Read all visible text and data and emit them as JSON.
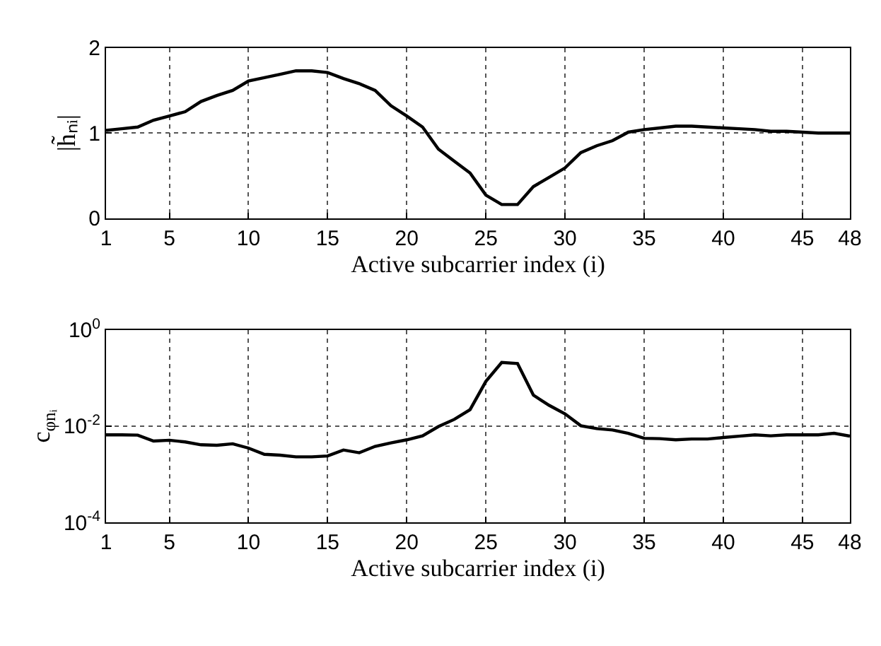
{
  "chart_data": [
    {
      "type": "line",
      "xlabel": "Active subcarrier index (i)",
      "ylabel": "|h̃ₙᵢ|",
      "x": [
        1,
        2,
        3,
        4,
        5,
        6,
        7,
        8,
        9,
        10,
        11,
        12,
        13,
        14,
        15,
        16,
        17,
        18,
        19,
        20,
        21,
        22,
        23,
        24,
        25,
        26,
        27,
        28,
        29,
        30,
        31,
        32,
        33,
        34,
        35,
        36,
        37,
        38,
        39,
        40,
        41,
        42,
        43,
        44,
        45,
        46,
        47,
        48
      ],
      "series": [
        {
          "color": "#000000",
          "values": [
            1.03,
            1.05,
            1.07,
            1.15,
            1.2,
            1.25,
            1.37,
            1.44,
            1.5,
            1.61,
            1.65,
            1.69,
            1.73,
            1.73,
            1.71,
            1.64,
            1.58,
            1.5,
            1.32,
            1.2,
            1.07,
            0.81,
            0.67,
            0.53,
            0.27,
            0.16,
            0.16,
            0.37,
            0.48,
            0.59,
            0.77,
            0.85,
            0.91,
            1.01,
            1.04,
            1.06,
            1.08,
            1.08,
            1.07,
            1.06,
            1.05,
            1.04,
            1.02,
            1.02,
            1.01,
            1.0,
            1.0,
            1.0
          ]
        }
      ],
      "xlim": [
        1,
        48
      ],
      "xticks": [
        1,
        5,
        10,
        15,
        20,
        25,
        30,
        35,
        40,
        45,
        48
      ],
      "ylim": [
        0,
        2
      ],
      "yticks": [
        0,
        1,
        2
      ],
      "grid": true,
      "line_style": "solid"
    },
    {
      "type": "line",
      "xlabel": "Active subcarrier index (i)",
      "ylabel": "c$_{φnᵢ}$",
      "log": "y",
      "x": [
        1,
        2,
        3,
        4,
        5,
        6,
        7,
        8,
        9,
        10,
        11,
        12,
        13,
        14,
        15,
        16,
        17,
        18,
        19,
        20,
        21,
        22,
        23,
        24,
        25,
        26,
        27,
        28,
        29,
        30,
        31,
        32,
        33,
        34,
        35,
        36,
        37,
        38,
        39,
        40,
        41,
        42,
        43,
        44,
        45,
        46,
        47,
        48
      ],
      "series": [
        {
          "color": "#000000",
          "values": [
            0.0066,
            0.0066,
            0.0065,
            0.0049,
            0.0051,
            0.0047,
            0.0041,
            0.004,
            0.0043,
            0.0035,
            0.0026,
            0.0025,
            0.0023,
            0.0023,
            0.0024,
            0.0032,
            0.0028,
            0.0038,
            0.0045,
            0.0052,
            0.0063,
            0.0098,
            0.0138,
            0.022,
            0.085,
            0.21,
            0.2,
            0.044,
            0.027,
            0.018,
            0.0102,
            0.0089,
            0.0083,
            0.0071,
            0.0056,
            0.0055,
            0.0052,
            0.0054,
            0.0054,
            0.0058,
            0.0062,
            0.0066,
            0.0063,
            0.0066,
            0.0066,
            0.0066,
            0.0071,
            0.0062
          ]
        }
      ],
      "xlim": [
        1,
        48
      ],
      "xticks": [
        1,
        5,
        10,
        15,
        20,
        25,
        30,
        35,
        40,
        45,
        48
      ],
      "ylim": [
        0.0001,
        1
      ],
      "yticks": [
        {
          "value": 0.0001,
          "label": "10$^{-4}$"
        },
        {
          "value": 0.01,
          "label": "10$^{-2}$"
        },
        {
          "value": 1,
          "label": "10$^{0}$"
        }
      ],
      "grid": true,
      "line_style": "solid"
    }
  ]
}
